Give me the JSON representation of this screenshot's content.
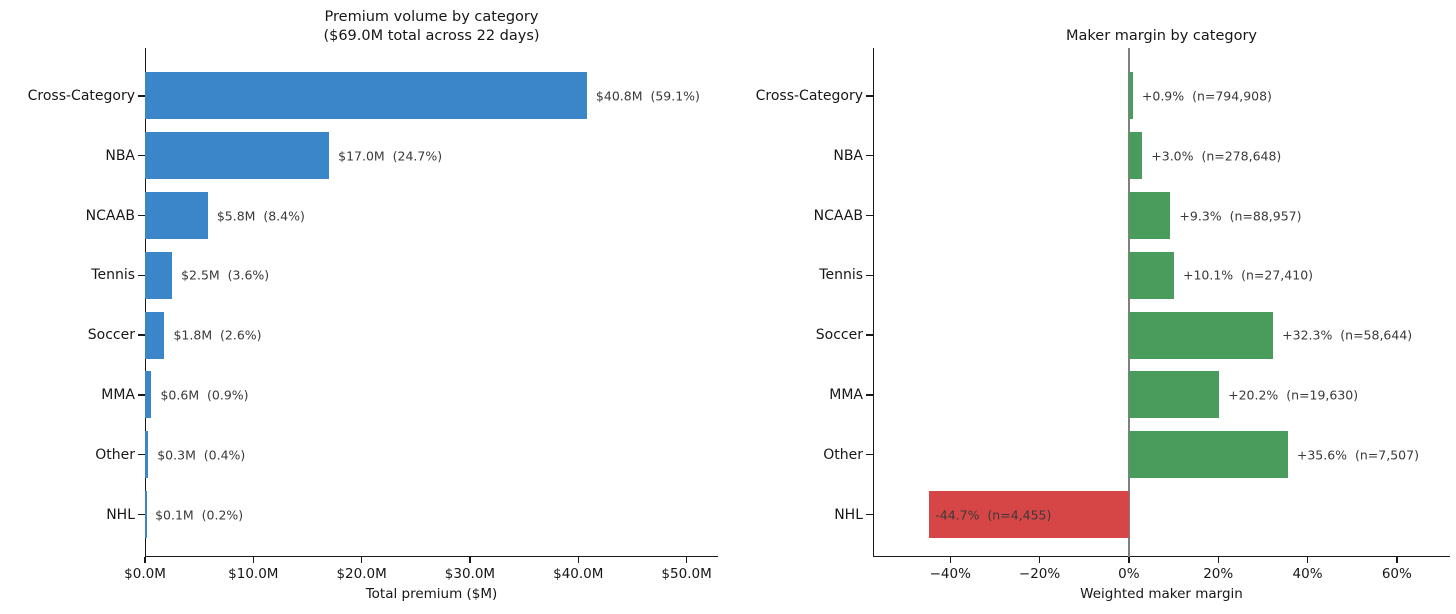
{
  "chart_data": [
    {
      "type": "bar",
      "orientation": "horizontal",
      "title_lines": [
        "Premium volume by category",
        "($69.0M total across 22 days)"
      ],
      "xlabel": "Total premium ($M)",
      "categories": [
        "Cross-Category",
        "NBA",
        "NCAAB",
        "Tennis",
        "Soccer",
        "MMA",
        "Other",
        "NHL"
      ],
      "values": [
        40.8,
        17.0,
        5.8,
        2.5,
        1.8,
        0.6,
        0.3,
        0.1
      ],
      "bar_labels": [
        "$40.8M  (59.1%)",
        "$17.0M  (24.7%)",
        "$5.8M  (8.4%)",
        "$2.5M  (3.6%)",
        "$1.8M  (2.6%)",
        "$0.6M  (0.9%)",
        "$0.3M  (0.4%)",
        "$0.1M  (0.2%)"
      ],
      "percent_share": [
        59.1,
        24.7,
        8.4,
        3.6,
        2.6,
        0.9,
        0.4,
        0.2
      ],
      "xlim": [
        0,
        52.9
      ],
      "xticks": [
        {
          "v": 0,
          "label": "$0.0M"
        },
        {
          "v": 10,
          "label": "$10.0M"
        },
        {
          "v": 20,
          "label": "$20.0M"
        },
        {
          "v": 30,
          "label": "$30.0M"
        },
        {
          "v": 40,
          "label": "$40.0M"
        },
        {
          "v": 50,
          "label": "$50.0M"
        }
      ],
      "bar_color": "#3b86c8",
      "grid": false,
      "legend": "none"
    },
    {
      "type": "bar",
      "orientation": "horizontal",
      "title_lines": [
        "Maker margin by category"
      ],
      "xlabel": "Weighted maker margin",
      "categories": [
        "Cross-Category",
        "NBA",
        "NCAAB",
        "Tennis",
        "Soccer",
        "MMA",
        "Other",
        "NHL"
      ],
      "values": [
        0.9,
        3.0,
        9.3,
        10.1,
        32.3,
        20.2,
        35.6,
        -44.7
      ],
      "bar_labels": [
        "+0.9%  (n=794,908)",
        "+3.0%  (n=278,648)",
        "+9.3%  (n=88,957)",
        "+10.1%  (n=27,410)",
        "+32.3%  (n=58,644)",
        "+20.2%  (n=19,630)",
        "+35.6%  (n=7,507)",
        "-44.7%  (n=4,455)"
      ],
      "sample_sizes": [
        794908,
        278648,
        88957,
        27410,
        58644,
        19630,
        7507,
        4455
      ],
      "xlim": [
        -57.3,
        71.9
      ],
      "xticks": [
        {
          "v": -40,
          "label": "−40%"
        },
        {
          "v": -20,
          "label": "−20%"
        },
        {
          "v": 0,
          "label": "0%"
        },
        {
          "v": 20,
          "label": "20%"
        },
        {
          "v": 40,
          "label": "40%"
        },
        {
          "v": 60,
          "label": "60%"
        }
      ],
      "positive_color": "#4a9c5c",
      "negative_color": "#d64646",
      "zero_line_color": "#7f7f7f",
      "grid": false,
      "legend": "none"
    }
  ]
}
